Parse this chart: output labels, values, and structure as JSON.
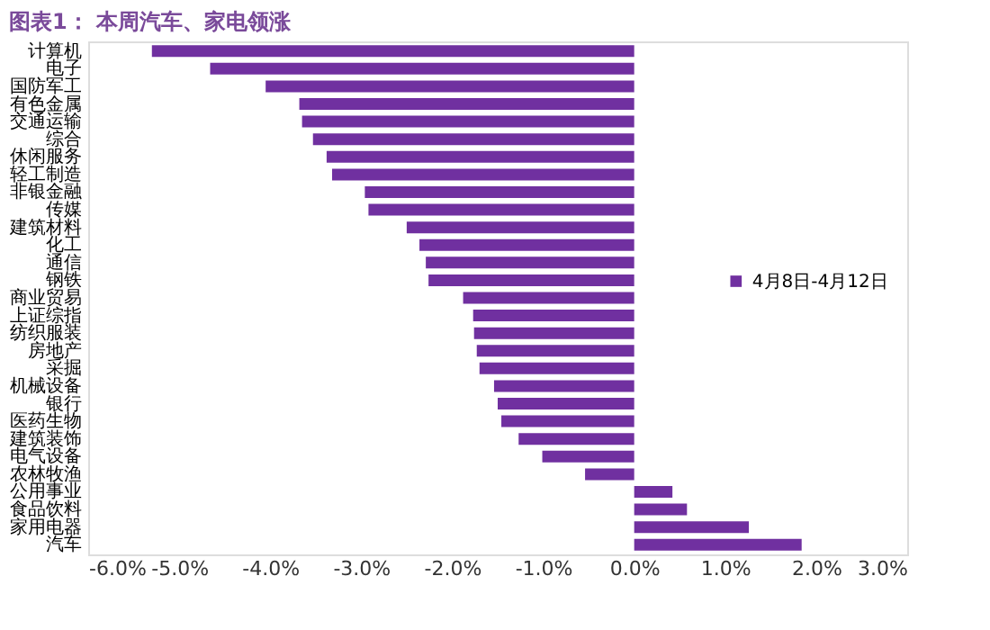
{
  "chart_data": {
    "type": "bar",
    "orientation": "horizontal",
    "title": "图表1：  本周汽车、家电领涨",
    "categories": [
      "计算机",
      "电子",
      "国防军工",
      "有色金属",
      "交通运输",
      "综合",
      "休闲服务",
      "轻工制造",
      "非银金融",
      "传媒",
      "建筑材料",
      "化工",
      "通信",
      "钢铁",
      "商业贸易",
      "上证综指",
      "纺织服装",
      "房地产",
      "采掘",
      "机械设备",
      "银行",
      "医药生物",
      "建筑装饰",
      "电气设备",
      "农林牧渔",
      "公用事业",
      "食品饮料",
      "家用电器",
      "汽车"
    ],
    "series": [
      {
        "name": "4月8日-4月12日",
        "color": "#7030a0",
        "values": [
          -5.3,
          -4.66,
          -4.05,
          -3.68,
          -3.65,
          -3.53,
          -3.38,
          -3.32,
          -2.96,
          -2.92,
          -2.5,
          -2.36,
          -2.29,
          -2.26,
          -1.88,
          -1.77,
          -1.76,
          -1.73,
          -1.7,
          -1.54,
          -1.5,
          -1.46,
          -1.27,
          -1.01,
          -0.54,
          0.42,
          0.58,
          1.26,
          1.84
        ]
      }
    ],
    "xlim": [
      -6,
      3
    ],
    "xticks": [
      {
        "value": -6,
        "label": "-6.0%"
      },
      {
        "value": -5,
        "label": "-5.0%"
      },
      {
        "value": -4,
        "label": "-4.0%"
      },
      {
        "value": -3,
        "label": "-3.0%"
      },
      {
        "value": -2,
        "label": "-2.0%"
      },
      {
        "value": -1,
        "label": "-1.0%"
      },
      {
        "value": 0,
        "label": "0.0%"
      },
      {
        "value": 1,
        "label": "1.0%"
      },
      {
        "value": 2,
        "label": "2.0%"
      },
      {
        "value": 3,
        "label": "3.0%"
      }
    ],
    "legend": "right",
    "grid": false
  }
}
